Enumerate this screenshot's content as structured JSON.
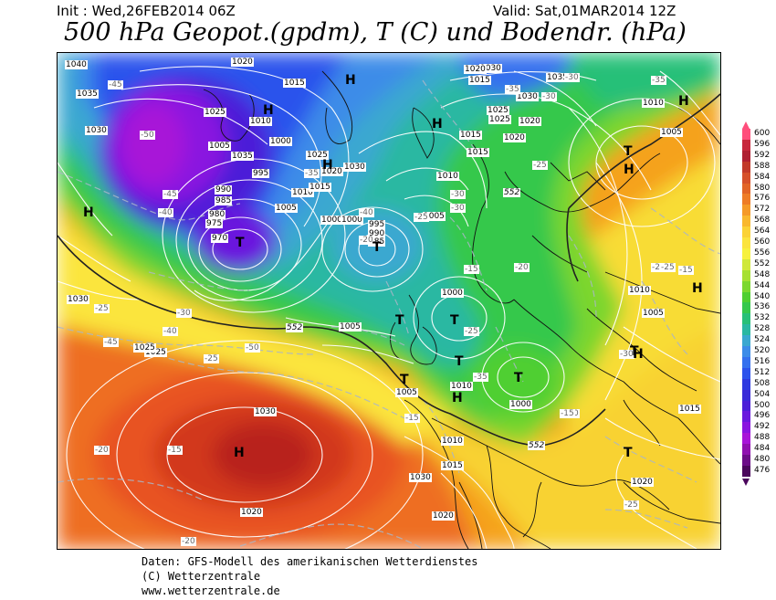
{
  "header": {
    "init": "Init : Wed,26FEB2014 06Z",
    "valid": "Valid: Sat,01MAR2014 12Z",
    "title": "500 hPa Geopot.(gpdm), T (C) und Bodendr. (hPa)"
  },
  "footer": {
    "line1": "Daten: GFS-Modell des amerikanischen Wetterdienstes",
    "line2": "(C) Wetterzentrale",
    "line3": "www.wetterzentrale.de"
  },
  "legend": {
    "values": [
      600,
      596,
      592,
      588,
      584,
      580,
      576,
      572,
      568,
      564,
      560,
      556,
      552,
      548,
      544,
      540,
      536,
      532,
      528,
      524,
      520,
      516,
      512,
      508,
      504,
      500,
      496,
      492,
      488,
      484,
      480,
      476
    ],
    "colors": [
      "#ff4e7c",
      "#c8283c",
      "#b02032",
      "#c23a2a",
      "#d6502a",
      "#e26426",
      "#ee7c26",
      "#f59a28",
      "#f9b82e",
      "#fbd236",
      "#fbe43e",
      "#f6f13e",
      "#cfe83a",
      "#a6e032",
      "#7cd82e",
      "#4fcf30",
      "#36c84c",
      "#28c078",
      "#2ab8a2",
      "#3aa8d0",
      "#3c8ce8",
      "#3470ee",
      "#2c52ec",
      "#2e3ae0",
      "#3a2ad8",
      "#4c1ed8",
      "#6a18de",
      "#8a14e0",
      "#a814d8",
      "#9010b0",
      "#6c0c88",
      "#4a065c"
    ]
  },
  "map": {
    "pressure_labels": [
      "1040",
      "1035",
      "1030",
      "1025",
      "1020",
      "1015",
      "1010",
      "1005",
      "1000",
      "995",
      "990",
      "985",
      "980",
      "975",
      "970",
      "1000",
      "1005",
      "1010",
      "1015",
      "1020",
      "1025",
      "1030",
      "1035",
      "1000",
      "995",
      "990",
      "985",
      "1005",
      "1010",
      "1015",
      "1020",
      "1025",
      "1030",
      "1000",
      "1005",
      "1010",
      "1015",
      "1020",
      "1030",
      "1035",
      "1025",
      "1020",
      "1000",
      "1005",
      "1010",
      "1015",
      "1020",
      "1025",
      "1030",
      "1030",
      "1030",
      "1025",
      "1020",
      "1015",
      "1010",
      "1005",
      "1005",
      "1010",
      "1015",
      "1020"
    ],
    "temp_labels": [
      "-45",
      "-50",
      "-45",
      "-40",
      "-35",
      "-40",
      "-35",
      "-30",
      "-25",
      "-30",
      "-35",
      "-30",
      "-25",
      "-20",
      "-15",
      "-20",
      "-25",
      "-30",
      "-35",
      "-40",
      "-45",
      "-50",
      "-25",
      "-30",
      "-25",
      "-20",
      "-15",
      "-20",
      "-25",
      "-30",
      "-15",
      "-20",
      "-15",
      "-25",
      "-25",
      "-15"
    ],
    "highs": [
      "H",
      "H",
      "H",
      "H",
      "H",
      "H",
      "H",
      "H",
      "H",
      "H",
      "H"
    ],
    "lows": [
      "T",
      "T",
      "T",
      "T",
      "T",
      "T",
      "T",
      "T",
      "T",
      "T"
    ],
    "contour_552": "552"
  }
}
